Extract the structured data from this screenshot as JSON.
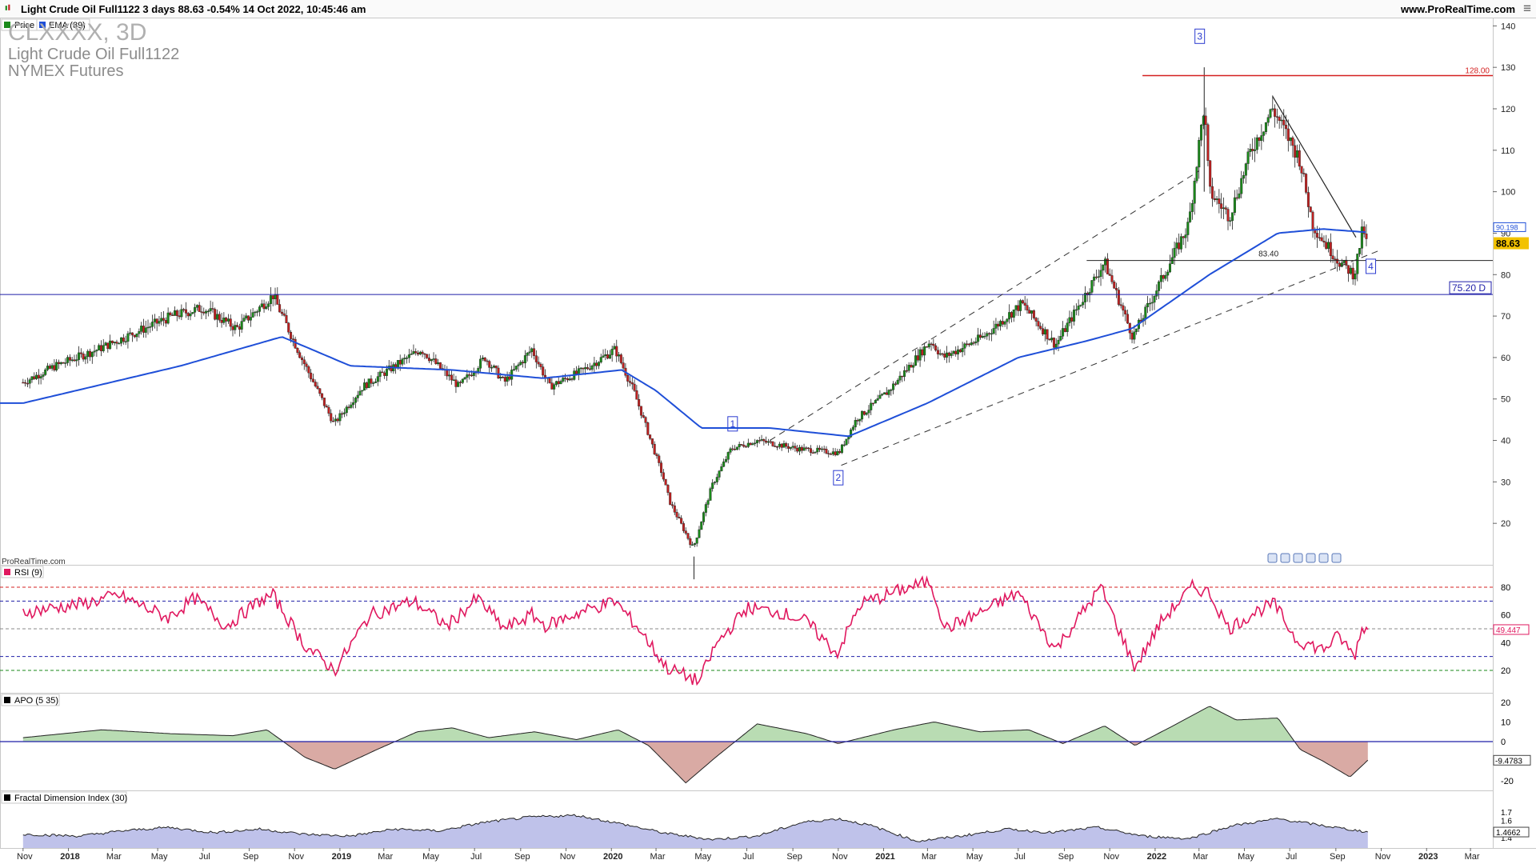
{
  "header": {
    "info": "Light Crude Oil Full1122 3 days 88.63 -0.54% 14 Oct 2022, 10:45:46 am",
    "site": "www.ProRealTime.com"
  },
  "colors": {
    "candle_up": "#1a8a1a",
    "candle_down": "#c02020",
    "ema": "#1f4fd8",
    "rsi": "#e0185f",
    "apo_pos": "#b9dcb3",
    "apo_neg": "#d9aaa4",
    "fdi_fill": "#bfc2ea",
    "price_badge": "#f2c200",
    "resistance": "#d42020",
    "support": "#1f1fa8"
  },
  "main": {
    "legend_price": "Price",
    "legend_ema": "EMA (89)",
    "symbol": "CLXXXX, 3D",
    "name": "Light Crude Oil Full1122",
    "exchange": "NYMEX Futures",
    "watermark": "ProRealTime.com",
    "last_price": "88.63",
    "ema_value": "90.198",
    "level_128": "128.00",
    "level_83": "83.40",
    "level_75": "75.20 D",
    "wave_labels": [
      "1",
      "2",
      "3",
      "4"
    ],
    "toolbar_icons": [
      "zoom-in-icon",
      "zoom-out-icon",
      "zoom-reset-icon",
      "scroll-left-icon",
      "scroll-right-icon",
      "settings-icon"
    ]
  },
  "rsi": {
    "label": "RSI (9)",
    "value": "49.447"
  },
  "apo": {
    "label": "APO (5 35)",
    "value": "-9.4783"
  },
  "fdi": {
    "label": "Fractal Dimension Index (30)",
    "value": "1.4662"
  },
  "chart_data": {
    "type": "candlestick",
    "title": "CLXXXX, 3D",
    "x_ticks": [
      "Nov",
      "2018",
      "Mar",
      "May",
      "Jul",
      "Sep",
      "Nov",
      "2019",
      "Mar",
      "May",
      "Jul",
      "Sep",
      "Nov",
      "2020",
      "Mar",
      "May",
      "Jul",
      "Sep",
      "Nov",
      "2021",
      "Mar",
      "May",
      "Jul",
      "Sep",
      "Nov",
      "2022",
      "Mar",
      "May",
      "Jul",
      "Sep",
      "Nov",
      "2023",
      "Mar"
    ],
    "y_ticks": [
      20,
      30,
      40,
      50,
      60,
      70,
      80,
      90,
      100,
      110,
      120,
      130,
      140
    ],
    "ylim": [
      10,
      142
    ],
    "close_path": {
      "dates": [
        "2017-11-01",
        "2017-12-15",
        "2018-02-10",
        "2018-05-20",
        "2018-07-01",
        "2018-08-15",
        "2018-10-03",
        "2018-11-10",
        "2018-12-24",
        "2019-02-01",
        "2019-04-20",
        "2019-06-10",
        "2019-07-15",
        "2019-08-10",
        "2019-09-16",
        "2019-10-10",
        "2019-11-25",
        "2020-01-06",
        "2020-01-31",
        "2020-03-09",
        "2020-03-20",
        "2020-04-20",
        "2020-05-15",
        "2020-06-10",
        "2020-07-15",
        "2020-09-08",
        "2020-11-02",
        "2020-11-25",
        "2021-01-08",
        "2021-03-05",
        "2021-03-22",
        "2021-05-15",
        "2021-07-06",
        "2021-08-20",
        "2021-10-25",
        "2021-12-02",
        "2021-12-30",
        "2022-02-15",
        "2022-03-08",
        "2022-03-15",
        "2022-04-11",
        "2022-05-10",
        "2022-06-08",
        "2022-07-14",
        "2022-08-01",
        "2022-08-16",
        "2022-09-06",
        "2022-09-26",
        "2022-10-07",
        "2022-10-14"
      ],
      "close": [
        54,
        58,
        62,
        70,
        72,
        67,
        75,
        60,
        44,
        53,
        62,
        53,
        60,
        54,
        62,
        53,
        57,
        62,
        52,
        32,
        25,
        14,
        29,
        38,
        40,
        38,
        37,
        45,
        52,
        64,
        60,
        65,
        73,
        63,
        83,
        65,
        75,
        92,
        121,
        100,
        94,
        110,
        120,
        108,
        92,
        88,
        83,
        80,
        91,
        88.63
      ]
    },
    "ema89": {
      "dates": [
        "2017-11-01",
        "2018-06-01",
        "2018-10-15",
        "2019-01-15",
        "2019-06-01",
        "2019-10-01",
        "2020-01-15",
        "2020-03-01",
        "2020-05-01",
        "2020-08-01",
        "2020-11-15",
        "2021-03-01",
        "2021-07-01",
        "2021-10-01",
        "2021-12-01",
        "2022-03-15",
        "2022-06-15",
        "2022-08-15",
        "2022-10-14"
      ],
      "values": [
        49,
        58,
        65,
        58,
        57,
        55,
        57,
        52,
        43,
        43,
        41,
        49,
        60,
        64,
        67,
        80,
        90,
        91,
        90.198
      ]
    },
    "levels": [
      {
        "value": 128,
        "label": "128.00"
      },
      {
        "value": 83.4,
        "label": "83.40"
      },
      {
        "value": 75.2,
        "label": "75.20 D"
      }
    ],
    "rsi": {
      "y_ticks": [
        20,
        40,
        60,
        80
      ],
      "ylim": [
        5,
        95
      ],
      "levels": [
        80,
        70,
        50,
        30,
        20
      ],
      "dates": [
        "2017-11-01",
        "2018-01-20",
        "2018-03-10",
        "2018-05-15",
        "2018-06-20",
        "2018-08-01",
        "2018-09-15",
        "2018-10-03",
        "2018-11-15",
        "2018-12-25",
        "2019-02-10",
        "2019-04-10",
        "2019-05-25",
        "2019-07-05",
        "2019-08-10",
        "2019-09-16",
        "2019-10-05",
        "2019-11-20",
        "2020-01-06",
        "2020-02-10",
        "2020-03-15",
        "2020-04-28",
        "2020-05-20",
        "2020-07-01",
        "2020-08-15",
        "2020-09-20",
        "2020-10-30",
        "2020-12-01",
        "2021-02-05",
        "2021-03-05",
        "2021-03-25",
        "2021-05-05",
        "2021-07-01",
        "2021-08-20",
        "2021-10-20",
        "2021-12-05",
        "2022-01-10",
        "2022-02-20",
        "2022-03-15",
        "2022-04-10",
        "2022-05-15",
        "2022-06-10",
        "2022-07-10",
        "2022-08-15",
        "2022-09-05",
        "2022-09-26",
        "2022-10-07",
        "2022-10-14"
      ],
      "values": [
        62,
        68,
        74,
        58,
        72,
        52,
        70,
        74,
        38,
        20,
        60,
        70,
        52,
        72,
        50,
        60,
        52,
        62,
        70,
        48,
        22,
        12,
        38,
        65,
        62,
        55,
        32,
        68,
        80,
        84,
        50,
        60,
        76,
        35,
        80,
        22,
        56,
        80,
        76,
        50,
        62,
        68,
        42,
        35,
        45,
        30,
        52,
        49.447
      ]
    },
    "apo": {
      "y_ticks": [
        20,
        10,
        0,
        -20
      ],
      "ylim": [
        -24,
        24
      ],
      "dates": [
        "2017-11-01",
        "2018-02-15",
        "2018-05-20",
        "2018-08-10",
        "2018-09-25",
        "2018-11-15",
        "2018-12-25",
        "2019-02-20",
        "2019-04-15",
        "2019-06-01",
        "2019-07-20",
        "2019-09-20",
        "2019-11-15",
        "2020-01-10",
        "2020-02-20",
        "2020-04-10",
        "2020-05-20",
        "2020-07-15",
        "2020-09-20",
        "2020-11-01",
        "2021-01-15",
        "2021-03-10",
        "2021-05-10",
        "2021-07-15",
        "2021-08-30",
        "2021-10-25",
        "2021-12-05",
        "2022-01-25",
        "2022-03-15",
        "2022-04-20",
        "2022-06-15",
        "2022-07-15",
        "2022-08-15",
        "2022-09-20",
        "2022-10-14"
      ],
      "values": [
        2,
        6,
        4,
        3,
        6,
        -8,
        -14,
        -4,
        5,
        7,
        2,
        5,
        1,
        6,
        -2,
        -21,
        -8,
        9,
        4,
        -1,
        6,
        10,
        5,
        6,
        -1,
        8,
        -2,
        8,
        18,
        11,
        12,
        -4,
        -10,
        -18,
        -9.4783
      ]
    },
    "fdi": {
      "y_ticks": [
        1.7,
        1.6,
        1.5,
        1.4
      ],
      "ylim": [
        1.3,
        1.8
      ],
      "dates": [
        "2017-11-01",
        "2018-01-15",
        "2018-03-15",
        "2018-05-15",
        "2018-07-15",
        "2018-09-15",
        "2018-11-15",
        "2019-01-15",
        "2019-03-15",
        "2019-05-15",
        "2019-07-15",
        "2019-09-15",
        "2019-11-15",
        "2020-01-15",
        "2020-03-15",
        "2020-05-15",
        "2020-07-15",
        "2020-09-15",
        "2020-11-01",
        "2020-12-15",
        "2021-02-15",
        "2021-04-15",
        "2021-06-15",
        "2021-08-15",
        "2021-10-15",
        "2021-12-15",
        "2022-02-15",
        "2022-04-15",
        "2022-06-15",
        "2022-08-15",
        "2022-10-14"
      ],
      "values": [
        1.44,
        1.42,
        1.48,
        1.52,
        1.46,
        1.5,
        1.44,
        1.42,
        1.5,
        1.48,
        1.58,
        1.64,
        1.66,
        1.56,
        1.45,
        1.38,
        1.42,
        1.58,
        1.62,
        1.54,
        1.36,
        1.42,
        1.5,
        1.46,
        1.52,
        1.42,
        1.39,
        1.54,
        1.62,
        1.54,
        1.4662
      ]
    }
  }
}
